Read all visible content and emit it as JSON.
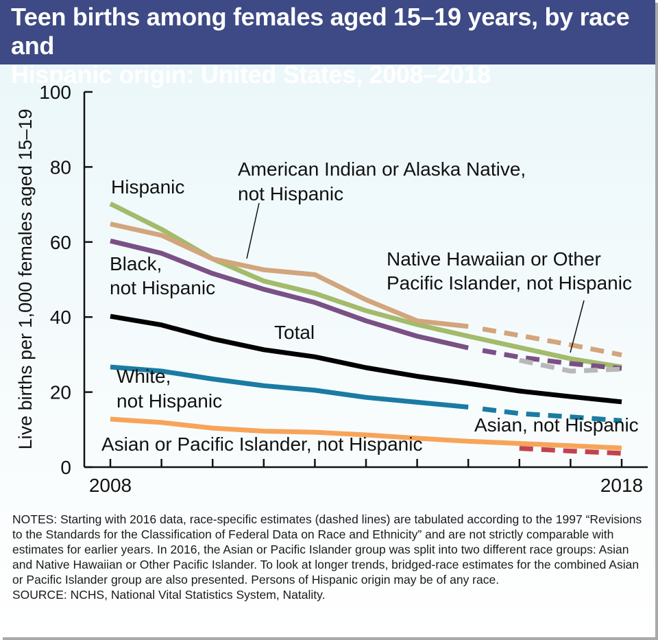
{
  "header": {
    "title_line1": "Teen births among females aged 15–19 years, by race and",
    "title_line2": "Hispanic origin: United States, 2008–2018"
  },
  "notes": {
    "text": "NOTES: Starting with 2016 data, race-specific estimates (dashed lines) are tabulated according to the 1997 “Revisions to the Standards for the Classification of Federal Data on Race and Ethnicity” and are not strictly comparable with estimates for earlier years. In 2016, the Asian or Pacific Islander group was split into two different race groups: Asian and Native Hawaiian or Other Pacific Islander. To look at longer trends, bridged-race estimates for the combined Asian or Pacific Islander group are also presented. Persons of Hispanic origin may be of any race.",
    "source": "SOURCE: NCHS, National Vital Statistics System, Natality."
  },
  "chart_data": {
    "type": "line",
    "title": "Teen births among females aged 15–19 years, by race and Hispanic origin: United States, 2008–2018",
    "ylabel": "Live births per 1,000 females aged 15–19",
    "xlabel": "",
    "xlim": [
      2008,
      2018
    ],
    "ylim": [
      0,
      100
    ],
    "x_ticks": [
      2008,
      2018
    ],
    "y_ticks": [
      0,
      20,
      40,
      60,
      80,
      100
    ],
    "grid": false,
    "series": [
      {
        "name": "Hispanic",
        "color": "#a3bb6a",
        "points": [
          [
            2008,
            70.2
          ],
          [
            2009,
            63.4
          ],
          [
            2010,
            55.5
          ],
          [
            2011,
            49.6
          ],
          [
            2012,
            46.3
          ],
          [
            2013,
            41.7
          ],
          [
            2014,
            38.0
          ],
          [
            2015,
            34.9
          ],
          [
            2016,
            31.9
          ],
          [
            2017,
            28.9
          ],
          [
            2018,
            26.7
          ]
        ],
        "dashed_from": null
      },
      {
        "name": "American Indian or Alaska Native, not Hispanic",
        "color": "#d2a57d",
        "points": [
          [
            2008,
            64.8
          ],
          [
            2009,
            61.8
          ],
          [
            2010,
            55.5
          ],
          [
            2011,
            52.6
          ],
          [
            2012,
            51.3
          ],
          [
            2013,
            44.6
          ],
          [
            2014,
            39.0
          ],
          [
            2015,
            37.5
          ],
          [
            2016,
            35.1
          ],
          [
            2017,
            32.6
          ],
          [
            2018,
            29.9
          ]
        ],
        "dashed_from": 2015
      },
      {
        "name": "Black, not Hispanic",
        "color": "#7a5085",
        "points": [
          [
            2008,
            60.3
          ],
          [
            2009,
            57.0
          ],
          [
            2010,
            51.6
          ],
          [
            2011,
            47.4
          ],
          [
            2012,
            43.9
          ],
          [
            2013,
            39.0
          ],
          [
            2014,
            34.9
          ],
          [
            2015,
            31.8
          ],
          [
            2016,
            29.3
          ],
          [
            2017,
            27.6
          ],
          [
            2018,
            26.3
          ]
        ],
        "dashed_from": 2015
      },
      {
        "name": "Native Hawaiian or Other Pacific Islander, not Hispanic",
        "color": "#b8b8b8",
        "points": [
          [
            2016,
            28.5
          ],
          [
            2017,
            25.6
          ],
          [
            2018,
            26.1
          ]
        ],
        "dashed_from": 2016
      },
      {
        "name": "Total",
        "color": "#000000",
        "points": [
          [
            2008,
            40.2
          ],
          [
            2009,
            37.9
          ],
          [
            2010,
            34.2
          ],
          [
            2011,
            31.3
          ],
          [
            2012,
            29.4
          ],
          [
            2013,
            26.5
          ],
          [
            2014,
            24.2
          ],
          [
            2015,
            22.3
          ],
          [
            2016,
            20.3
          ],
          [
            2017,
            18.8
          ],
          [
            2018,
            17.4
          ]
        ],
        "dashed_from": null
      },
      {
        "name": "White, not Hispanic",
        "color": "#1a7ba3",
        "points": [
          [
            2008,
            26.7
          ],
          [
            2009,
            25.6
          ],
          [
            2010,
            23.5
          ],
          [
            2011,
            21.7
          ],
          [
            2012,
            20.5
          ],
          [
            2013,
            18.6
          ],
          [
            2014,
            17.3
          ],
          [
            2015,
            16.0
          ],
          [
            2016,
            14.3
          ],
          [
            2017,
            13.4
          ],
          [
            2018,
            12.4
          ]
        ],
        "dashed_from": 2015
      },
      {
        "name": "Asian or Pacific Islander, not Hispanic",
        "color": "#f7a45a",
        "points": [
          [
            2008,
            12.8
          ],
          [
            2009,
            11.9
          ],
          [
            2010,
            10.4
          ],
          [
            2011,
            9.6
          ],
          [
            2012,
            9.3
          ],
          [
            2013,
            8.6
          ],
          [
            2014,
            7.7
          ],
          [
            2015,
            6.9
          ],
          [
            2016,
            6.3
          ],
          [
            2017,
            5.7
          ],
          [
            2018,
            5.1
          ]
        ],
        "dashed_from": null
      },
      {
        "name": "Asian, not Hispanic",
        "color": "#c0434f",
        "points": [
          [
            2016,
            5.0
          ],
          [
            2017,
            4.3
          ],
          [
            2018,
            3.7
          ]
        ],
        "dashed_from": 2016
      }
    ],
    "labels": {
      "hispanic": "Hispanic",
      "aian_line1": "American Indian or Alaska Native,",
      "aian_line2": "not Hispanic",
      "black_line1": "Black,",
      "black_line2": "not Hispanic",
      "nhopi_line1": "Native Hawaiian or Other",
      "nhopi_line2": "Pacific Islander, not Hispanic",
      "total": "Total",
      "white_line1": "White,",
      "white_line2": "not Hispanic",
      "asian": "Asian, not Hispanic",
      "api": "Asian or Pacific Islander, not Hispanic"
    }
  }
}
